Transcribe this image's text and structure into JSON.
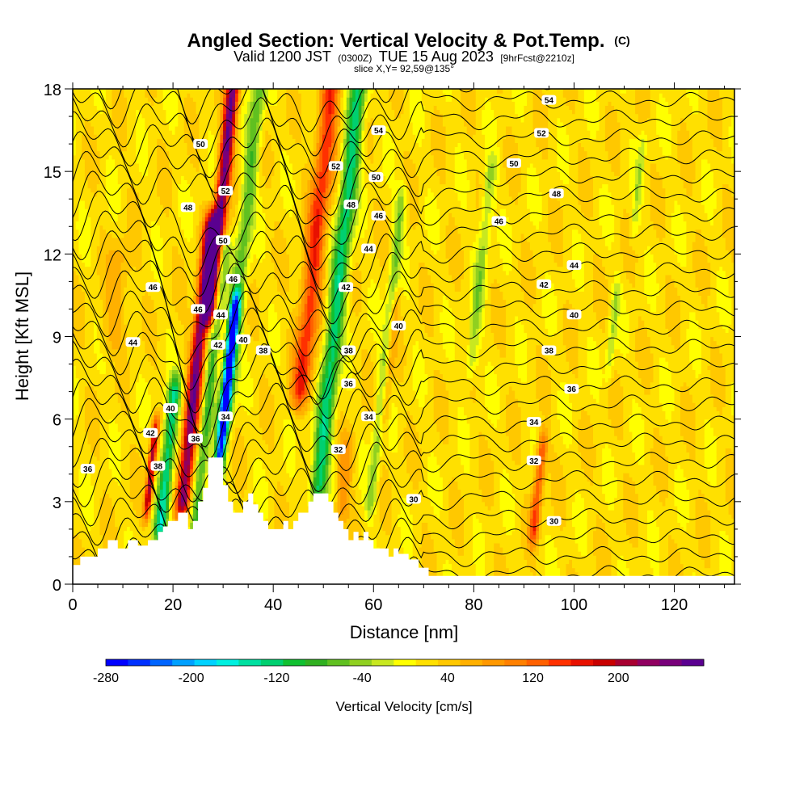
{
  "chart_data": {
    "type": "heatmap",
    "title": "Angled Section: Vertical Velocity & Pot.Temp.",
    "title_units": "(C)",
    "subtitle_parts": [
      "Valid 1200 JST",
      "(0300Z)",
      "TUE 15 Aug 2023",
      "[9hrFcst@2210z]"
    ],
    "subtitle2": "slice X,Y= 92,59@135°",
    "xlabel": "Distance [nm]",
    "ylabel": "Height [Kft MSL]",
    "xlim": [
      0,
      132
    ],
    "ylim": [
      0,
      18
    ],
    "x_ticks": [
      0,
      20,
      40,
      60,
      80,
      100,
      120
    ],
    "y_ticks": [
      0,
      3,
      6,
      9,
      12,
      15,
      18
    ],
    "colorbar": {
      "label": "Vertical Velocity [cm/s]",
      "range": [
        -280,
        280
      ],
      "ticks": [
        -280,
        -200,
        -120,
        -40,
        40,
        120,
        200
      ],
      "colors": [
        "#0000ff",
        "#0030ff",
        "#0064ff",
        "#00a0ff",
        "#00d2ff",
        "#00f0e0",
        "#00e0a0",
        "#00d070",
        "#10c030",
        "#30b020",
        "#60c020",
        "#90d020",
        "#c8e820",
        "#ffff00",
        "#ffe000",
        "#ffc800",
        "#ffb000",
        "#ff9800",
        "#ff8000",
        "#ff6000",
        "#ff3000",
        "#e81000",
        "#c80000",
        "#a80030",
        "#900060",
        "#78007a",
        "#5a0090"
      ]
    },
    "velocity_features": [
      {
        "x": 15,
        "bottom": 3,
        "top": 5.5,
        "w": 0.7,
        "v": 190
      },
      {
        "x": 17.5,
        "bottom": 2,
        "top": 7,
        "w": 1.3,
        "v": -160
      },
      {
        "x": 22,
        "bottom": 3,
        "top": 13,
        "w": 1.4,
        "v": 230
      },
      {
        "x": 24.5,
        "bottom": 2,
        "top": 12,
        "w": 1.2,
        "v": -100
      },
      {
        "x": 27.5,
        "bottom": 10,
        "top": 18,
        "w": 1.3,
        "v": 240
      },
      {
        "x": 29,
        "bottom": 4,
        "top": 10,
        "w": 1.0,
        "v": -270
      },
      {
        "x": 30.5,
        "bottom": 6,
        "top": 18,
        "w": 1.5,
        "v": -90
      },
      {
        "x": 45.5,
        "bottom": 7,
        "top": 18,
        "w": 2.0,
        "v": 130
      },
      {
        "x": 49,
        "bottom": 3.5,
        "top": 18,
        "w": 1.7,
        "v": -150
      },
      {
        "x": 53.5,
        "bottom": 2.5,
        "top": 5,
        "w": 1.5,
        "v": 60
      },
      {
        "x": 59.5,
        "bottom": 3,
        "top": 14,
        "w": 1.0,
        "v": -70
      },
      {
        "x": 62,
        "bottom": 6,
        "top": 10,
        "w": 1.0,
        "v": 55
      },
      {
        "x": 79.5,
        "bottom": 8,
        "top": 15,
        "w": 1.2,
        "v": -60
      },
      {
        "x": 92,
        "bottom": 2,
        "top": 5,
        "w": 1.0,
        "v": 120
      },
      {
        "x": 107,
        "bottom": 8,
        "top": 10.5,
        "w": 0.8,
        "v": -50
      },
      {
        "x": 112,
        "bottom": 13,
        "top": 16,
        "w": 0.8,
        "v": -40
      },
      {
        "x": 8,
        "bottom": 9,
        "top": 12,
        "w": 2.5,
        "v": 40
      }
    ],
    "isentrope_levels": [
      29,
      30,
      31,
      32,
      33,
      34,
      35,
      36,
      37,
      38,
      39,
      40,
      41,
      42,
      43,
      44,
      45,
      46,
      47,
      48,
      49,
      50,
      51,
      52,
      53,
      54,
      55
    ],
    "contour_labels": [
      {
        "x": 3,
        "y": 4.2,
        "text": "36"
      },
      {
        "x": 12,
        "y": 8.8,
        "text": "44"
      },
      {
        "x": 16,
        "y": 10.8,
        "text": "46"
      },
      {
        "x": 15.5,
        "y": 5.5,
        "text": "42"
      },
      {
        "x": 17,
        "y": 4.3,
        "text": "38"
      },
      {
        "x": 19.5,
        "y": 6.4,
        "text": "40"
      },
      {
        "x": 25,
        "y": 10,
        "text": "46"
      },
      {
        "x": 24.5,
        "y": 5.3,
        "text": "36"
      },
      {
        "x": 25.5,
        "y": 16,
        "text": "50"
      },
      {
        "x": 23,
        "y": 13.7,
        "text": "48"
      },
      {
        "x": 30.5,
        "y": 14.3,
        "text": "52"
      },
      {
        "x": 30,
        "y": 12.5,
        "text": "50"
      },
      {
        "x": 32,
        "y": 11.1,
        "text": "46"
      },
      {
        "x": 29.5,
        "y": 9.8,
        "text": "44"
      },
      {
        "x": 29,
        "y": 8.7,
        "text": "42"
      },
      {
        "x": 30.5,
        "y": 6.1,
        "text": "34"
      },
      {
        "x": 34,
        "y": 8.9,
        "text": "40"
      },
      {
        "x": 38,
        "y": 8.5,
        "text": "38"
      },
      {
        "x": 61,
        "y": 16.5,
        "text": "54"
      },
      {
        "x": 52.5,
        "y": 15.2,
        "text": "52"
      },
      {
        "x": 60.5,
        "y": 14.8,
        "text": "50"
      },
      {
        "x": 55.5,
        "y": 13.8,
        "text": "48"
      },
      {
        "x": 61,
        "y": 13.4,
        "text": "46"
      },
      {
        "x": 59,
        "y": 12.2,
        "text": "44"
      },
      {
        "x": 54.5,
        "y": 10.8,
        "text": "42"
      },
      {
        "x": 65,
        "y": 9.4,
        "text": "40"
      },
      {
        "x": 55,
        "y": 8.5,
        "text": "38"
      },
      {
        "x": 55,
        "y": 7.3,
        "text": "36"
      },
      {
        "x": 59,
        "y": 6.1,
        "text": "34"
      },
      {
        "x": 53,
        "y": 4.9,
        "text": "32"
      },
      {
        "x": 68,
        "y": 3.1,
        "text": "30"
      },
      {
        "x": 95,
        "y": 17.6,
        "text": "54"
      },
      {
        "x": 93.5,
        "y": 16.4,
        "text": "52"
      },
      {
        "x": 88,
        "y": 15.3,
        "text": "50"
      },
      {
        "x": 96.5,
        "y": 14.2,
        "text": "48"
      },
      {
        "x": 85,
        "y": 13.2,
        "text": "46"
      },
      {
        "x": 100,
        "y": 11.6,
        "text": "44"
      },
      {
        "x": 94,
        "y": 10.9,
        "text": "42"
      },
      {
        "x": 100,
        "y": 9.8,
        "text": "40"
      },
      {
        "x": 95,
        "y": 8.5,
        "text": "38"
      },
      {
        "x": 99.5,
        "y": 7.1,
        "text": "36"
      },
      {
        "x": 92,
        "y": 5.9,
        "text": "34"
      },
      {
        "x": 92,
        "y": 4.5,
        "text": "32"
      },
      {
        "x": 96,
        "y": 2.3,
        "text": "30"
      }
    ],
    "terrain": [
      [
        0,
        0.7
      ],
      [
        1.5,
        0.7
      ],
      [
        1.5,
        1
      ],
      [
        5,
        1
      ],
      [
        5,
        1.3
      ],
      [
        7,
        1.3
      ],
      [
        7,
        1.6
      ],
      [
        9,
        1.6
      ],
      [
        9,
        1.3
      ],
      [
        11,
        1.3
      ],
      [
        11,
        1.6
      ],
      [
        13,
        1.6
      ],
      [
        13,
        1.4
      ],
      [
        15,
        1.4
      ],
      [
        15,
        1.6
      ],
      [
        17,
        1.6
      ],
      [
        17,
        1.9
      ],
      [
        18,
        1.9
      ],
      [
        18,
        2.1
      ],
      [
        19,
        2.1
      ],
      [
        19,
        2.3
      ],
      [
        21,
        2.3
      ],
      [
        21,
        2.6
      ],
      [
        23,
        2.6
      ],
      [
        23,
        2
      ],
      [
        24,
        2
      ],
      [
        24,
        2.3
      ],
      [
        25,
        2.3
      ],
      [
        25,
        3
      ],
      [
        26,
        3
      ],
      [
        26,
        3.5
      ],
      [
        27,
        3.5
      ],
      [
        27,
        4.6
      ],
      [
        30,
        4.6
      ],
      [
        30,
        3.6
      ],
      [
        31,
        3.6
      ],
      [
        31,
        3
      ],
      [
        32,
        3
      ],
      [
        32,
        2.6
      ],
      [
        34,
        2.6
      ],
      [
        34,
        3
      ],
      [
        35,
        3
      ],
      [
        35,
        3.3
      ],
      [
        36,
        3.3
      ],
      [
        36,
        2.9
      ],
      [
        37,
        2.9
      ],
      [
        37,
        2.6
      ],
      [
        38,
        2.6
      ],
      [
        38,
        2.3
      ],
      [
        39,
        2.3
      ],
      [
        39,
        2
      ],
      [
        42,
        2
      ],
      [
        42,
        2.3
      ],
      [
        43,
        2.3
      ],
      [
        43,
        2
      ],
      [
        44,
        2
      ],
      [
        44,
        2.3
      ],
      [
        45,
        2.3
      ],
      [
        45,
        2.6
      ],
      [
        47,
        2.6
      ],
      [
        47,
        3
      ],
      [
        48,
        3
      ],
      [
        48,
        3.3
      ],
      [
        51,
        3.3
      ],
      [
        51,
        3
      ],
      [
        52,
        3
      ],
      [
        52,
        2.6
      ],
      [
        53,
        2.6
      ],
      [
        53,
        2.3
      ],
      [
        54,
        2.3
      ],
      [
        54,
        2
      ],
      [
        55,
        2
      ],
      [
        55,
        1.6
      ],
      [
        56,
        1.6
      ],
      [
        56,
        1.9
      ],
      [
        57,
        1.9
      ],
      [
        57,
        1.6
      ],
      [
        58,
        1.6
      ],
      [
        58,
        1.9
      ],
      [
        59,
        1.9
      ],
      [
        59,
        1.6
      ],
      [
        60,
        1.6
      ],
      [
        60,
        1.3
      ],
      [
        63,
        1.3
      ],
      [
        63,
        1
      ],
      [
        64,
        1
      ],
      [
        64,
        1.3
      ],
      [
        65,
        1.3
      ],
      [
        65,
        1.1
      ],
      [
        67,
        1.1
      ],
      [
        67,
        0.9
      ],
      [
        69,
        0.9
      ],
      [
        69,
        0.6
      ],
      [
        71,
        0.6
      ],
      [
        71,
        0.3
      ],
      [
        132,
        0.3
      ]
    ],
    "grid": false
  }
}
